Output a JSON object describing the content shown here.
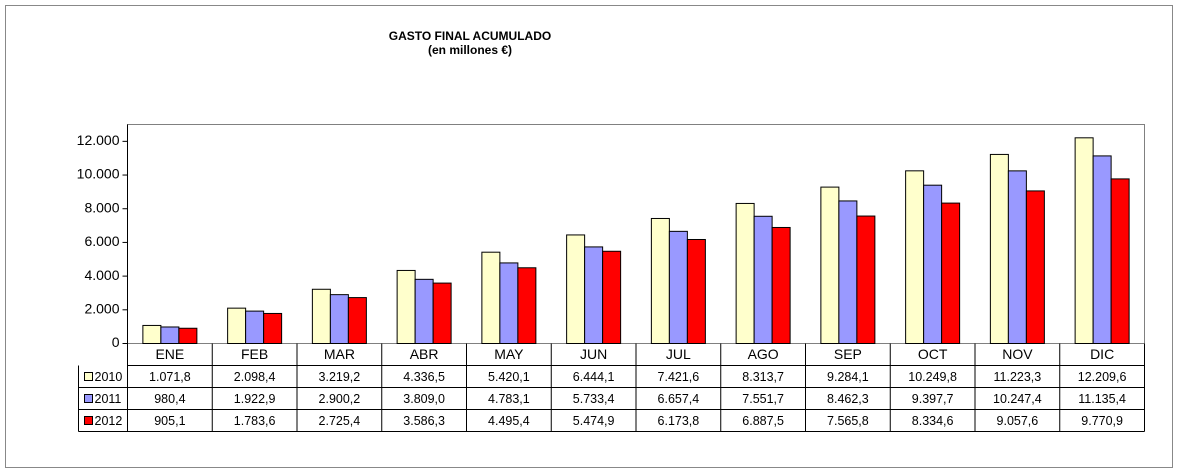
{
  "chart_data": {
    "type": "bar",
    "title": "GASTO FINAL ACUMULADO",
    "subtitle": "(en millones €)",
    "categories": [
      "ENE",
      "FEB",
      "MAR",
      "ABR",
      "MAY",
      "JUN",
      "JUL",
      "AGO",
      "SEP",
      "OCT",
      "NOV",
      "DIC"
    ],
    "series": [
      {
        "name": "2010",
        "color": "#ffffcc",
        "values": [
          1071.8,
          2098.4,
          3219.2,
          4336.5,
          5420.1,
          6444.1,
          7421.6,
          8313.7,
          9284.1,
          10249.8,
          11223.3,
          12209.6
        ],
        "value_labels": [
          "1.071,8",
          "2.098,4",
          "3.219,2",
          "4.336,5",
          "5.420,1",
          "6.444,1",
          "7.421,6",
          "8.313,7",
          "9.284,1",
          "10.249,8",
          "11.223,3",
          "12.209,6"
        ]
      },
      {
        "name": "2011",
        "color": "#9999ff",
        "values": [
          980.4,
          1922.9,
          2900.2,
          3809.0,
          4783.1,
          5733.4,
          6657.4,
          7551.7,
          8462.3,
          9397.7,
          10247.4,
          11135.4
        ],
        "value_labels": [
          "980,4",
          "1.922,9",
          "2.900,2",
          "3.809,0",
          "4.783,1",
          "5.733,4",
          "6.657,4",
          "7.551,7",
          "8.462,3",
          "9.397,7",
          "10.247,4",
          "11.135,4"
        ]
      },
      {
        "name": "2012",
        "color": "#ff0000",
        "values": [
          905.1,
          1783.6,
          2725.4,
          3586.3,
          4495.4,
          5474.9,
          6173.8,
          6887.5,
          7565.8,
          8334.6,
          9057.6,
          9770.9
        ],
        "value_labels": [
          "905,1",
          "1.783,6",
          "2.725,4",
          "3.586,3",
          "4.495,4",
          "5.474,9",
          "6.173,8",
          "6.887,5",
          "7.565,8",
          "8.334,6",
          "9.057,6",
          "9.770,9"
        ]
      }
    ],
    "ylim": [
      0,
      13000
    ],
    "yticks": [
      0,
      {
        "value": 2000,
        "label": "2.000"
      },
      {
        "value": 4000,
        "label": "4.000"
      },
      {
        "value": 6000,
        "label": "6.000"
      },
      {
        "value": 8000,
        "label": "8.000"
      },
      {
        "value": 10000,
        "label": "10.000"
      },
      {
        "value": 12000,
        "label": "12.000"
      }
    ],
    "grid": false
  }
}
